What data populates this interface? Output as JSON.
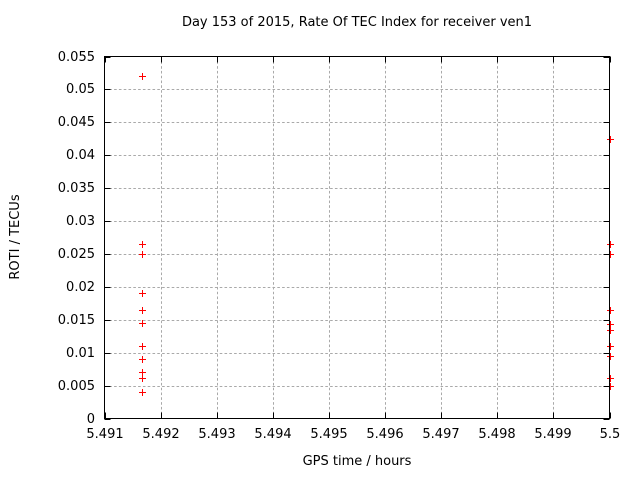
{
  "chart_data": {
    "type": "scatter",
    "title": "Day 153 of 2015, Rate Of TEC Index for receiver ven1",
    "xlabel": "GPS time / hours",
    "ylabel": "ROTI / TECUs",
    "xlim": [
      5.491,
      5.5
    ],
    "ylim": [
      0,
      0.055
    ],
    "xtick_values": [
      5.491,
      5.492,
      5.493,
      5.494,
      5.495,
      5.496,
      5.497,
      5.498,
      5.499,
      5.5
    ],
    "xtick_labels": [
      "5.491",
      "5.492",
      "5.493",
      "5.494",
      "5.495",
      "5.496",
      "5.497",
      "5.498",
      "5.499",
      "5.5"
    ],
    "ytick_values": [
      0,
      0.005,
      0.01,
      0.015,
      0.02,
      0.025,
      0.03,
      0.035,
      0.04,
      0.045,
      0.05,
      0.055
    ],
    "ytick_labels": [
      "0",
      "0.005",
      "0.01",
      "0.015",
      "0.02",
      "0.025",
      "0.03",
      "0.035",
      "0.04",
      "0.045",
      "0.05",
      "0.055"
    ],
    "grid": true,
    "legend": "none",
    "marker": "plus",
    "colors": {
      "marker": "#ff0000",
      "grid": "#a9a9a9",
      "axis": "#000000",
      "text": "#000000"
    },
    "series": [
      {
        "name": "ROTI",
        "points": [
          [
            5.49167,
            0.052
          ],
          [
            5.49167,
            0.0265
          ],
          [
            5.49167,
            0.025
          ],
          [
            5.49167,
            0.019
          ],
          [
            5.49167,
            0.0165
          ],
          [
            5.49167,
            0.0145
          ],
          [
            5.49167,
            0.011
          ],
          [
            5.49167,
            0.009
          ],
          [
            5.49167,
            0.007
          ],
          [
            5.49167,
            0.0062
          ],
          [
            5.49167,
            0.004
          ],
          [
            5.5,
            0.0425
          ],
          [
            5.5,
            0.0265
          ],
          [
            5.5,
            0.025
          ],
          [
            5.5,
            0.0165
          ],
          [
            5.5,
            0.0143
          ],
          [
            5.5,
            0.0135
          ],
          [
            5.5,
            0.011
          ],
          [
            5.5,
            0.0095
          ],
          [
            5.5,
            0.0062
          ],
          [
            5.5,
            0.005
          ]
        ]
      }
    ]
  }
}
